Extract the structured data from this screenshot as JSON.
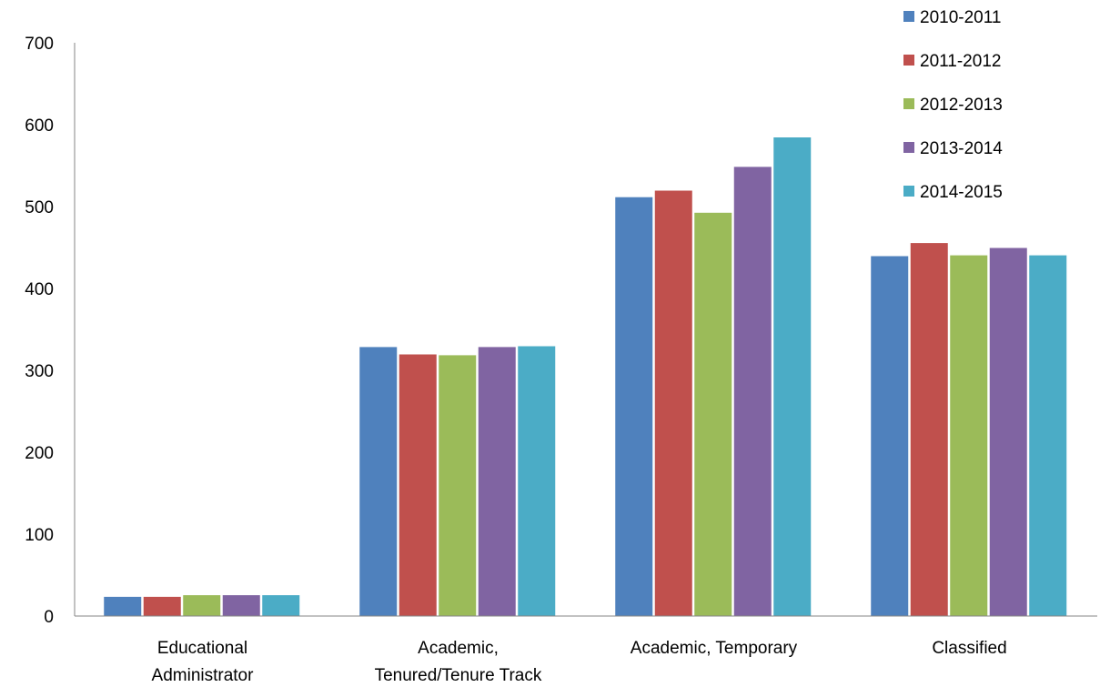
{
  "chart_data": {
    "type": "bar",
    "categories": [
      [
        "Educational",
        "Administrator"
      ],
      [
        "Academic,",
        "Tenured/Tenure Track"
      ],
      [
        "Academic, Temporary"
      ],
      [
        "Classified"
      ]
    ],
    "series": [
      {
        "name": "2010-2011",
        "color": "#4F81BD",
        "values": [
          24,
          329,
          512,
          440
        ]
      },
      {
        "name": "2011-2012",
        "color": "#C0504D",
        "values": [
          24,
          320,
          520,
          456
        ]
      },
      {
        "name": "2012-2013",
        "color": "#9BBB59",
        "values": [
          26,
          319,
          493,
          441
        ]
      },
      {
        "name": "2013-2014",
        "color": "#8064A2",
        "values": [
          26,
          329,
          549,
          450
        ]
      },
      {
        "name": "2014-2015",
        "color": "#4BACC6",
        "values": [
          26,
          330,
          585,
          441
        ]
      }
    ],
    "ylim": [
      0,
      700
    ],
    "yticks": [
      0,
      100,
      200,
      300,
      400,
      500,
      600,
      700
    ],
    "grid": false,
    "legend_position": "top-right"
  }
}
